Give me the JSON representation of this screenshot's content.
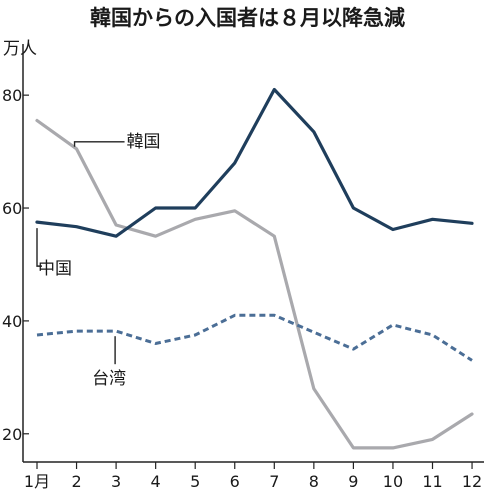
{
  "chart_data": {
    "type": "line",
    "title": "韓国からの入国者は８月以降急減",
    "ylabel": "万人",
    "xlabel": "",
    "categories": [
      "1月",
      "2",
      "3",
      "4",
      "5",
      "6",
      "7",
      "8",
      "9",
      "10",
      "11",
      "12"
    ],
    "ylim": [
      15,
      88
    ],
    "yticks": [
      20,
      40,
      60,
      80
    ],
    "grid": false,
    "series": [
      {
        "name": "韓国",
        "color": "#a9a9ad",
        "style": "solid",
        "values": [
          75.5,
          70.5,
          57,
          55,
          58,
          59.5,
          55,
          28,
          17.5,
          17.5,
          19,
          23.5
        ]
      },
      {
        "name": "中国",
        "color": "#1f3e5c",
        "style": "solid",
        "values": [
          57.5,
          56.7,
          55,
          60,
          60,
          68,
          81,
          73.5,
          60,
          56.2,
          58,
          57.3
        ]
      },
      {
        "name": "台湾",
        "color": "#4b6e96",
        "style": "dashed",
        "values": [
          37.5,
          38.2,
          38.2,
          36,
          37.5,
          41,
          41,
          38,
          35,
          39.3,
          37.5,
          33
        ]
      }
    ]
  }
}
